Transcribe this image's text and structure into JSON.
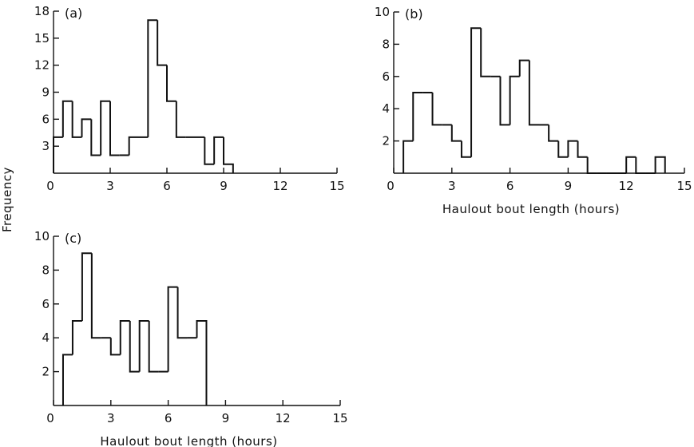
{
  "figure": {
    "ylabel": "Frequency"
  },
  "chart_data": [
    {
      "type": "bar",
      "panel_label": "(a)",
      "xlabel": "",
      "ylabel": "Frequency",
      "xlim": [
        0,
        15
      ],
      "ylim": [
        0,
        18
      ],
      "xticks": [
        0,
        3,
        6,
        9,
        12,
        15
      ],
      "yticks": [
        3,
        6,
        9,
        12,
        15,
        18
      ],
      "bin_width": 0.5,
      "bin_starts": [
        0,
        0.5,
        1,
        1.5,
        2,
        2.5,
        3,
        3.5,
        4,
        4.5,
        5,
        5.5,
        6,
        6.5,
        7,
        7.5,
        8,
        8.5,
        9
      ],
      "values": [
        4,
        8,
        4,
        6,
        2,
        8,
        2,
        2,
        4,
        4,
        17,
        12,
        8,
        4,
        4,
        4,
        1,
        4,
        1
      ]
    },
    {
      "type": "bar",
      "panel_label": "(b)",
      "xlabel": "Haulout bout length (hours)",
      "ylabel": "Frequency",
      "xlim": [
        0,
        15
      ],
      "ylim": [
        0,
        10
      ],
      "xticks": [
        0,
        3,
        6,
        9,
        12,
        15
      ],
      "yticks": [
        2,
        4,
        6,
        8,
        10
      ],
      "bin_width": 0.5,
      "bin_starts": [
        0.5,
        1,
        1.5,
        2,
        2.5,
        3,
        3.5,
        4,
        4.5,
        5,
        5.5,
        6,
        6.5,
        7,
        7.5,
        8,
        8.5,
        9,
        9.5,
        10,
        10.5,
        11,
        11.5,
        12,
        12.5,
        13,
        13.5
      ],
      "values": [
        2,
        5,
        5,
        3,
        3,
        2,
        1,
        9,
        6,
        6,
        3,
        6,
        7,
        3,
        3,
        2,
        1,
        2,
        1,
        0,
        0,
        0,
        0,
        1,
        0,
        0,
        1
      ]
    },
    {
      "type": "bar",
      "panel_label": "(c)",
      "xlabel": "Haulout bout length (hours)",
      "ylabel": "Frequency",
      "xlim": [
        0,
        15
      ],
      "ylim": [
        0,
        10
      ],
      "xticks": [
        0,
        3,
        6,
        9,
        12,
        15
      ],
      "yticks": [
        2,
        4,
        6,
        8,
        10
      ],
      "bin_width": 0.5,
      "bin_starts": [
        0.5,
        1,
        1.5,
        2,
        2.5,
        3,
        3.5,
        4,
        4.5,
        5,
        5.5,
        6,
        6.5,
        7,
        7.5
      ],
      "values": [
        3,
        5,
        9,
        4,
        4,
        3,
        5,
        2,
        5,
        2,
        2,
        7,
        4,
        4,
        5
      ]
    }
  ]
}
